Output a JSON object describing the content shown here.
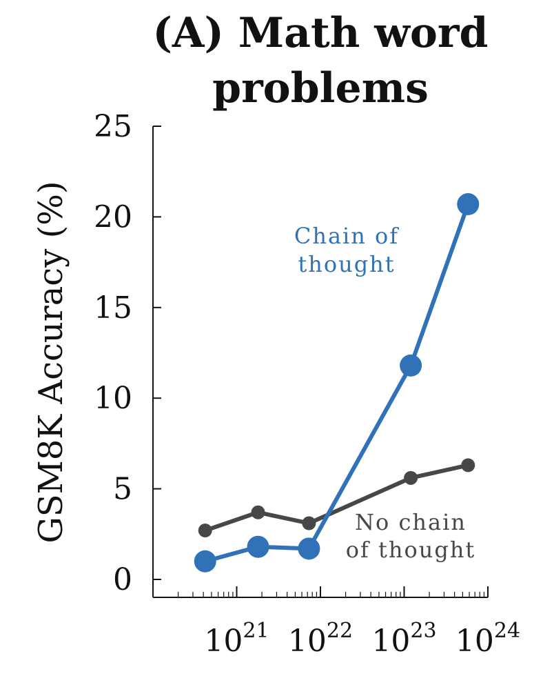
{
  "chart_data": {
    "type": "line",
    "title": [
      "(A) Math word",
      "problems"
    ],
    "ylabel": "GSM8K Accuracy (%)",
    "xlabel": "",
    "x_scale": "log",
    "xlim": [
      1e+20,
      1e+24
    ],
    "ylim": [
      0,
      25
    ],
    "yticks": [
      0,
      5,
      10,
      15,
      20,
      25
    ],
    "xticks": [
      {
        "value": 1e+21,
        "base": "10",
        "exp": "21"
      },
      {
        "value": 1e+22,
        "base": "10",
        "exp": "22"
      },
      {
        "value": 1e+23,
        "base": "10",
        "exp": "23"
      },
      {
        "value": 1e+24,
        "base": "10",
        "exp": "24"
      }
    ],
    "series": [
      {
        "name": "No chain of thought",
        "label_lines": [
          "No chain",
          "of thought"
        ],
        "color": "#474747",
        "x": [
          4.2e+20,
          1.8e+21,
          7.3e+21,
          1.2e+23,
          5.8e+23
        ],
        "y": [
          2.7,
          3.7,
          3.1,
          5.6,
          6.3
        ]
      },
      {
        "name": "Chain of thought",
        "label_lines": [
          "Chain of",
          "thought"
        ],
        "color": "#3171b8",
        "x": [
          4.2e+20,
          1.8e+21,
          7.3e+21,
          1.2e+23,
          5.8e+23
        ],
        "y": [
          1.0,
          1.8,
          1.7,
          11.8,
          20.7
        ]
      }
    ]
  }
}
